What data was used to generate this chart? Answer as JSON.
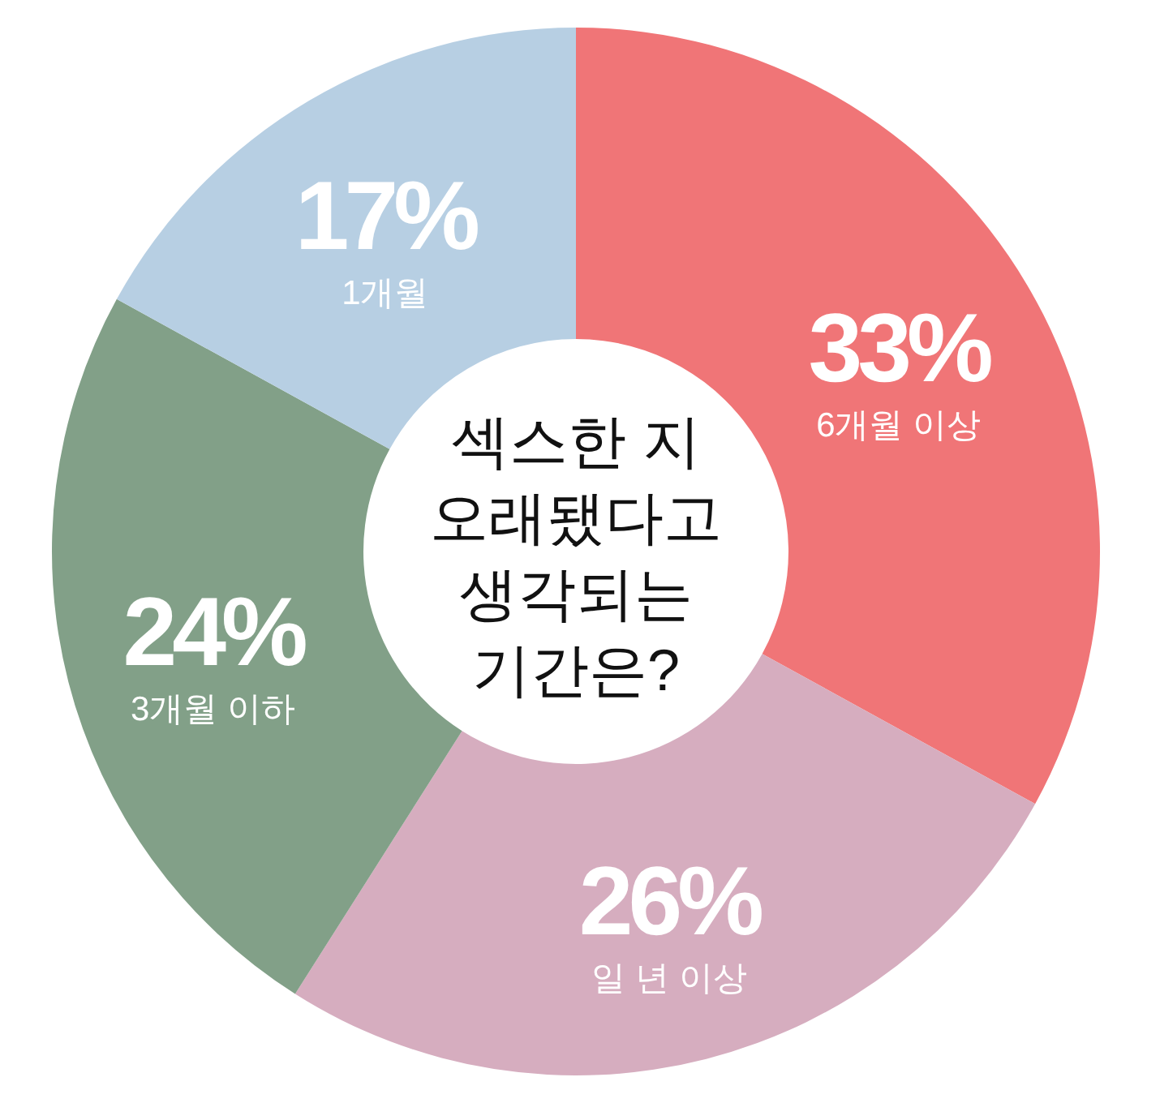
{
  "chart_data": {
    "type": "donut",
    "title": "섹스한 지\n오래됐다고\n생각되는\n기간은?",
    "categories": [
      "6개월 이상",
      "일 년 이상",
      "3개월 이하",
      "1개월"
    ],
    "values": [
      33,
      26,
      24,
      17
    ],
    "colors": [
      "#f07577",
      "#d6adbf",
      "#82a088",
      "#b7cfe3"
    ],
    "value_labels": [
      "33%",
      "26%",
      "24%",
      "17%"
    ]
  }
}
